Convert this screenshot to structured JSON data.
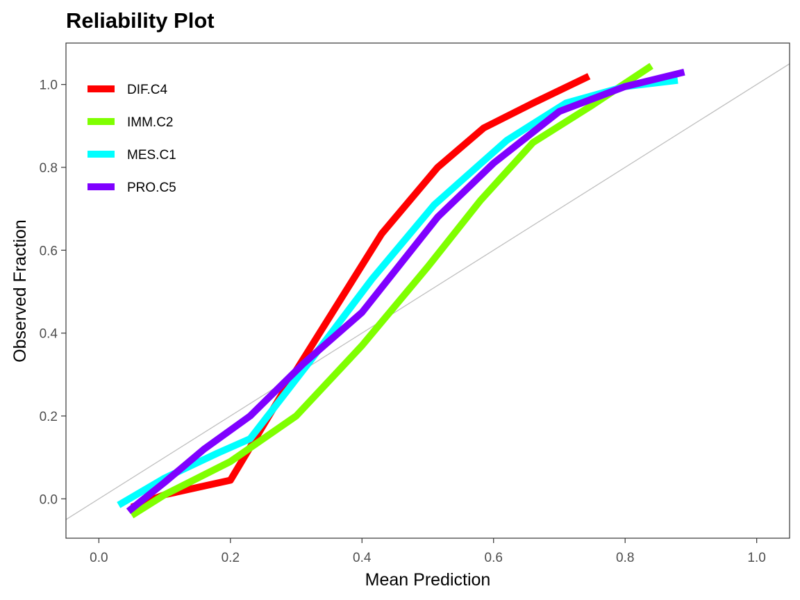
{
  "chart_data": {
    "type": "line",
    "title": "Reliability Plot",
    "xlabel": "Mean Prediction",
    "ylabel": "Observed Fraction",
    "xlim": [
      -0.05,
      1.05
    ],
    "ylim": [
      -0.095,
      1.1
    ],
    "x_ticks": [
      "0.0",
      "0.2",
      "0.4",
      "0.6",
      "0.8",
      "1.0"
    ],
    "y_ticks": [
      "0.0",
      "0.2",
      "0.4",
      "0.6",
      "0.8",
      "1.0"
    ],
    "grid": false,
    "legend_position": "top-left",
    "reference_line": {
      "slope": 1,
      "intercept": 0,
      "color": "#bebebe"
    },
    "series": [
      {
        "name": "DIF.C4",
        "color": "#ff0000",
        "x": [
          0.05,
          0.1,
          0.2,
          0.3,
          0.43,
          0.515,
          0.585,
          0.66,
          0.745
        ],
        "y": [
          -0.02,
          0.01,
          0.045,
          0.31,
          0.64,
          0.8,
          0.895,
          0.955,
          1.02
        ]
      },
      {
        "name": "IMM.C2",
        "color": "#7fff00",
        "x": [
          0.05,
          0.1,
          0.2,
          0.3,
          0.4,
          0.5,
          0.58,
          0.66,
          0.75,
          0.84
        ],
        "y": [
          -0.04,
          0.01,
          0.09,
          0.2,
          0.37,
          0.56,
          0.72,
          0.86,
          0.95,
          1.045
        ]
      },
      {
        "name": "MES.C1",
        "color": "#00ffff",
        "x": [
          0.03,
          0.1,
          0.18,
          0.23,
          0.32,
          0.415,
          0.51,
          0.62,
          0.71,
          0.8,
          0.88
        ],
        "y": [
          -0.015,
          0.05,
          0.11,
          0.145,
          0.33,
          0.53,
          0.71,
          0.865,
          0.955,
          0.995,
          1.01
        ]
      },
      {
        "name": "PRO.C5",
        "color": "#7f00ff",
        "x": [
          0.045,
          0.1,
          0.16,
          0.23,
          0.31,
          0.4,
          0.515,
          0.6,
          0.7,
          0.8,
          0.89
        ],
        "y": [
          -0.03,
          0.04,
          0.12,
          0.2,
          0.325,
          0.45,
          0.68,
          0.81,
          0.935,
          0.995,
          1.03
        ]
      }
    ]
  }
}
